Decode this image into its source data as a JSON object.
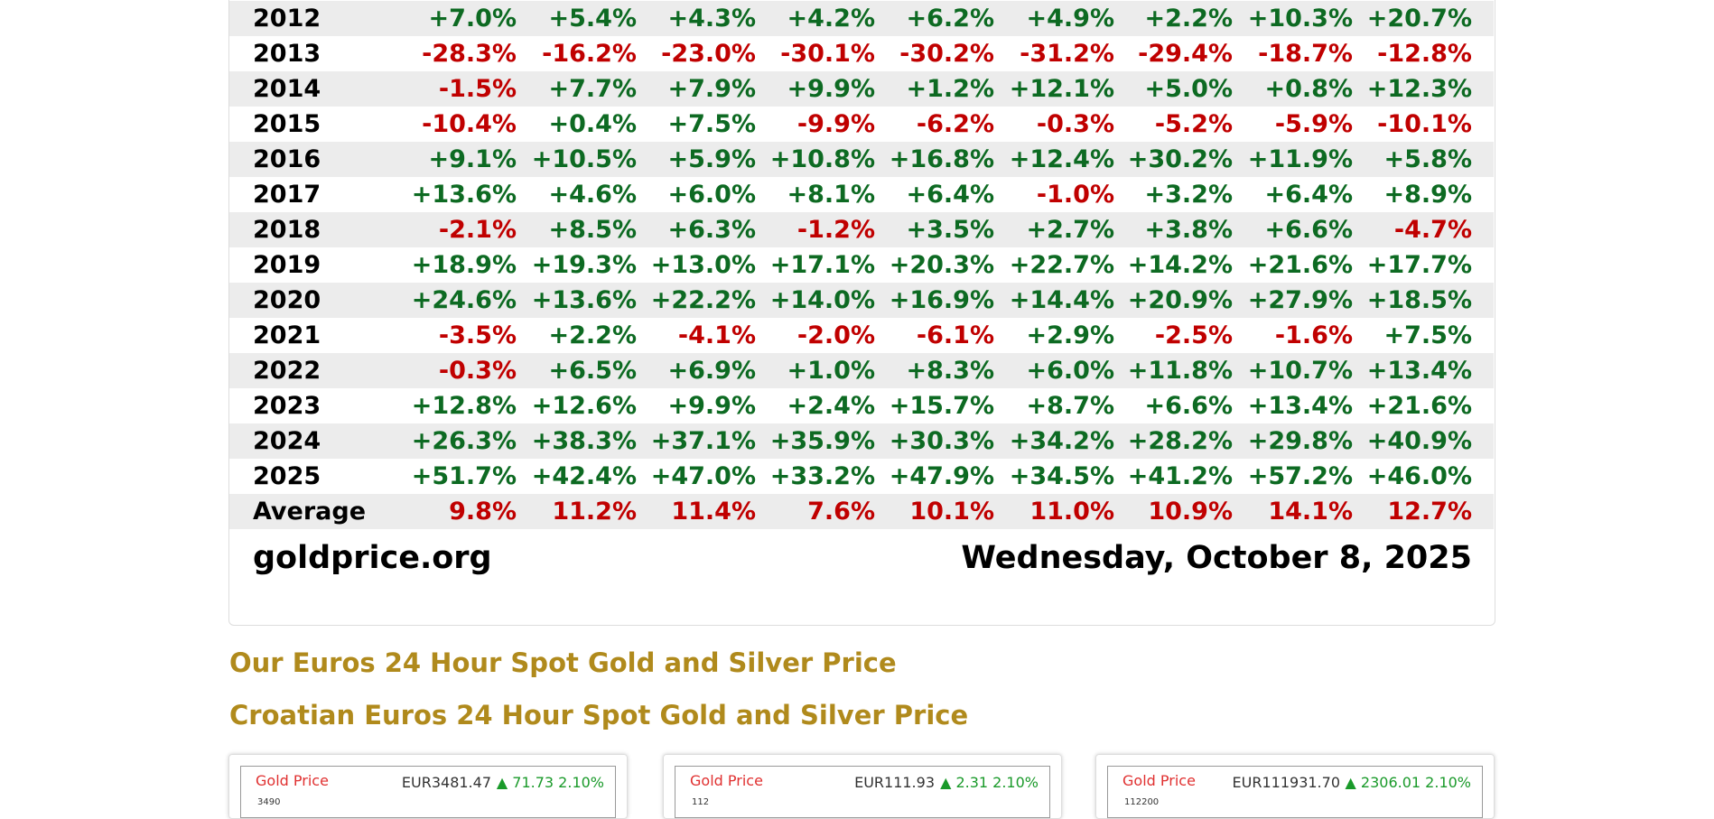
{
  "table": {
    "rows": [
      {
        "year": "2012",
        "values": [
          "+7.0%",
          "+5.4%",
          "+4.3%",
          "+4.2%",
          "+6.2%",
          "+4.9%",
          "+2.2%",
          "+10.3%",
          "+20.7%"
        ]
      },
      {
        "year": "2013",
        "values": [
          "-28.3%",
          "-16.2%",
          "-23.0%",
          "-30.1%",
          "-30.2%",
          "-31.2%",
          "-29.4%",
          "-18.7%",
          "-12.8%"
        ]
      },
      {
        "year": "2014",
        "values": [
          "-1.5%",
          "+7.7%",
          "+7.9%",
          "+9.9%",
          "+1.2%",
          "+12.1%",
          "+5.0%",
          "+0.8%",
          "+12.3%"
        ]
      },
      {
        "year": "2015",
        "values": [
          "-10.4%",
          "+0.4%",
          "+7.5%",
          "-9.9%",
          "-6.2%",
          "-0.3%",
          "-5.2%",
          "-5.9%",
          "-10.1%"
        ]
      },
      {
        "year": "2016",
        "values": [
          "+9.1%",
          "+10.5%",
          "+5.9%",
          "+10.8%",
          "+16.8%",
          "+12.4%",
          "+30.2%",
          "+11.9%",
          "+5.8%"
        ]
      },
      {
        "year": "2017",
        "values": [
          "+13.6%",
          "+4.6%",
          "+6.0%",
          "+8.1%",
          "+6.4%",
          "-1.0%",
          "+3.2%",
          "+6.4%",
          "+8.9%"
        ]
      },
      {
        "year": "2018",
        "values": [
          "-2.1%",
          "+8.5%",
          "+6.3%",
          "-1.2%",
          "+3.5%",
          "+2.7%",
          "+3.8%",
          "+6.6%",
          "-4.7%"
        ]
      },
      {
        "year": "2019",
        "values": [
          "+18.9%",
          "+19.3%",
          "+13.0%",
          "+17.1%",
          "+20.3%",
          "+22.7%",
          "+14.2%",
          "+21.6%",
          "+17.7%"
        ]
      },
      {
        "year": "2020",
        "values": [
          "+24.6%",
          "+13.6%",
          "+22.2%",
          "+14.0%",
          "+16.9%",
          "+14.4%",
          "+20.9%",
          "+27.9%",
          "+18.5%"
        ]
      },
      {
        "year": "2021",
        "values": [
          "-3.5%",
          "+2.2%",
          "-4.1%",
          "-2.0%",
          "-6.1%",
          "+2.9%",
          "-2.5%",
          "-1.6%",
          "+7.5%"
        ]
      },
      {
        "year": "2022",
        "values": [
          "-0.3%",
          "+6.5%",
          "+6.9%",
          "+1.0%",
          "+8.3%",
          "+6.0%",
          "+11.8%",
          "+10.7%",
          "+13.4%"
        ]
      },
      {
        "year": "2023",
        "values": [
          "+12.8%",
          "+12.6%",
          "+9.9%",
          "+2.4%",
          "+15.7%",
          "+8.7%",
          "+6.6%",
          "+13.4%",
          "+21.6%"
        ]
      },
      {
        "year": "2024",
        "values": [
          "+26.3%",
          "+38.3%",
          "+37.1%",
          "+35.9%",
          "+30.3%",
          "+34.2%",
          "+28.2%",
          "+29.8%",
          "+40.9%"
        ]
      },
      {
        "year": "2025",
        "values": [
          "+51.7%",
          "+42.4%",
          "+47.0%",
          "+33.2%",
          "+47.9%",
          "+34.5%",
          "+41.2%",
          "+57.2%",
          "+46.0%"
        ]
      }
    ],
    "average": {
      "label": "Average",
      "values": [
        "9.8%",
        "11.2%",
        "11.4%",
        "7.6%",
        "10.1%",
        "11.0%",
        "10.9%",
        "14.1%",
        "12.7%"
      ]
    },
    "source": "goldprice.org",
    "date": "Wednesday, October 8, 2025"
  },
  "headings": [
    "Our Euros 24 Hour Spot Gold and Silver Price",
    "Croatian Euros 24 Hour Spot Gold and Silver Price"
  ],
  "panels": [
    {
      "title": "Gold Price",
      "price": "EUR3481.47",
      "change": "▲ 71.73 2.10%",
      "tick": "3490"
    },
    {
      "title": "Gold Price",
      "price": "EUR111.93",
      "change": "▲ 2.31 2.10%",
      "tick": "112"
    },
    {
      "title": "Gold Price",
      "price": "EUR111931.70",
      "change": "▲ 2306.01 2.10%",
      "tick": "112200"
    }
  ]
}
